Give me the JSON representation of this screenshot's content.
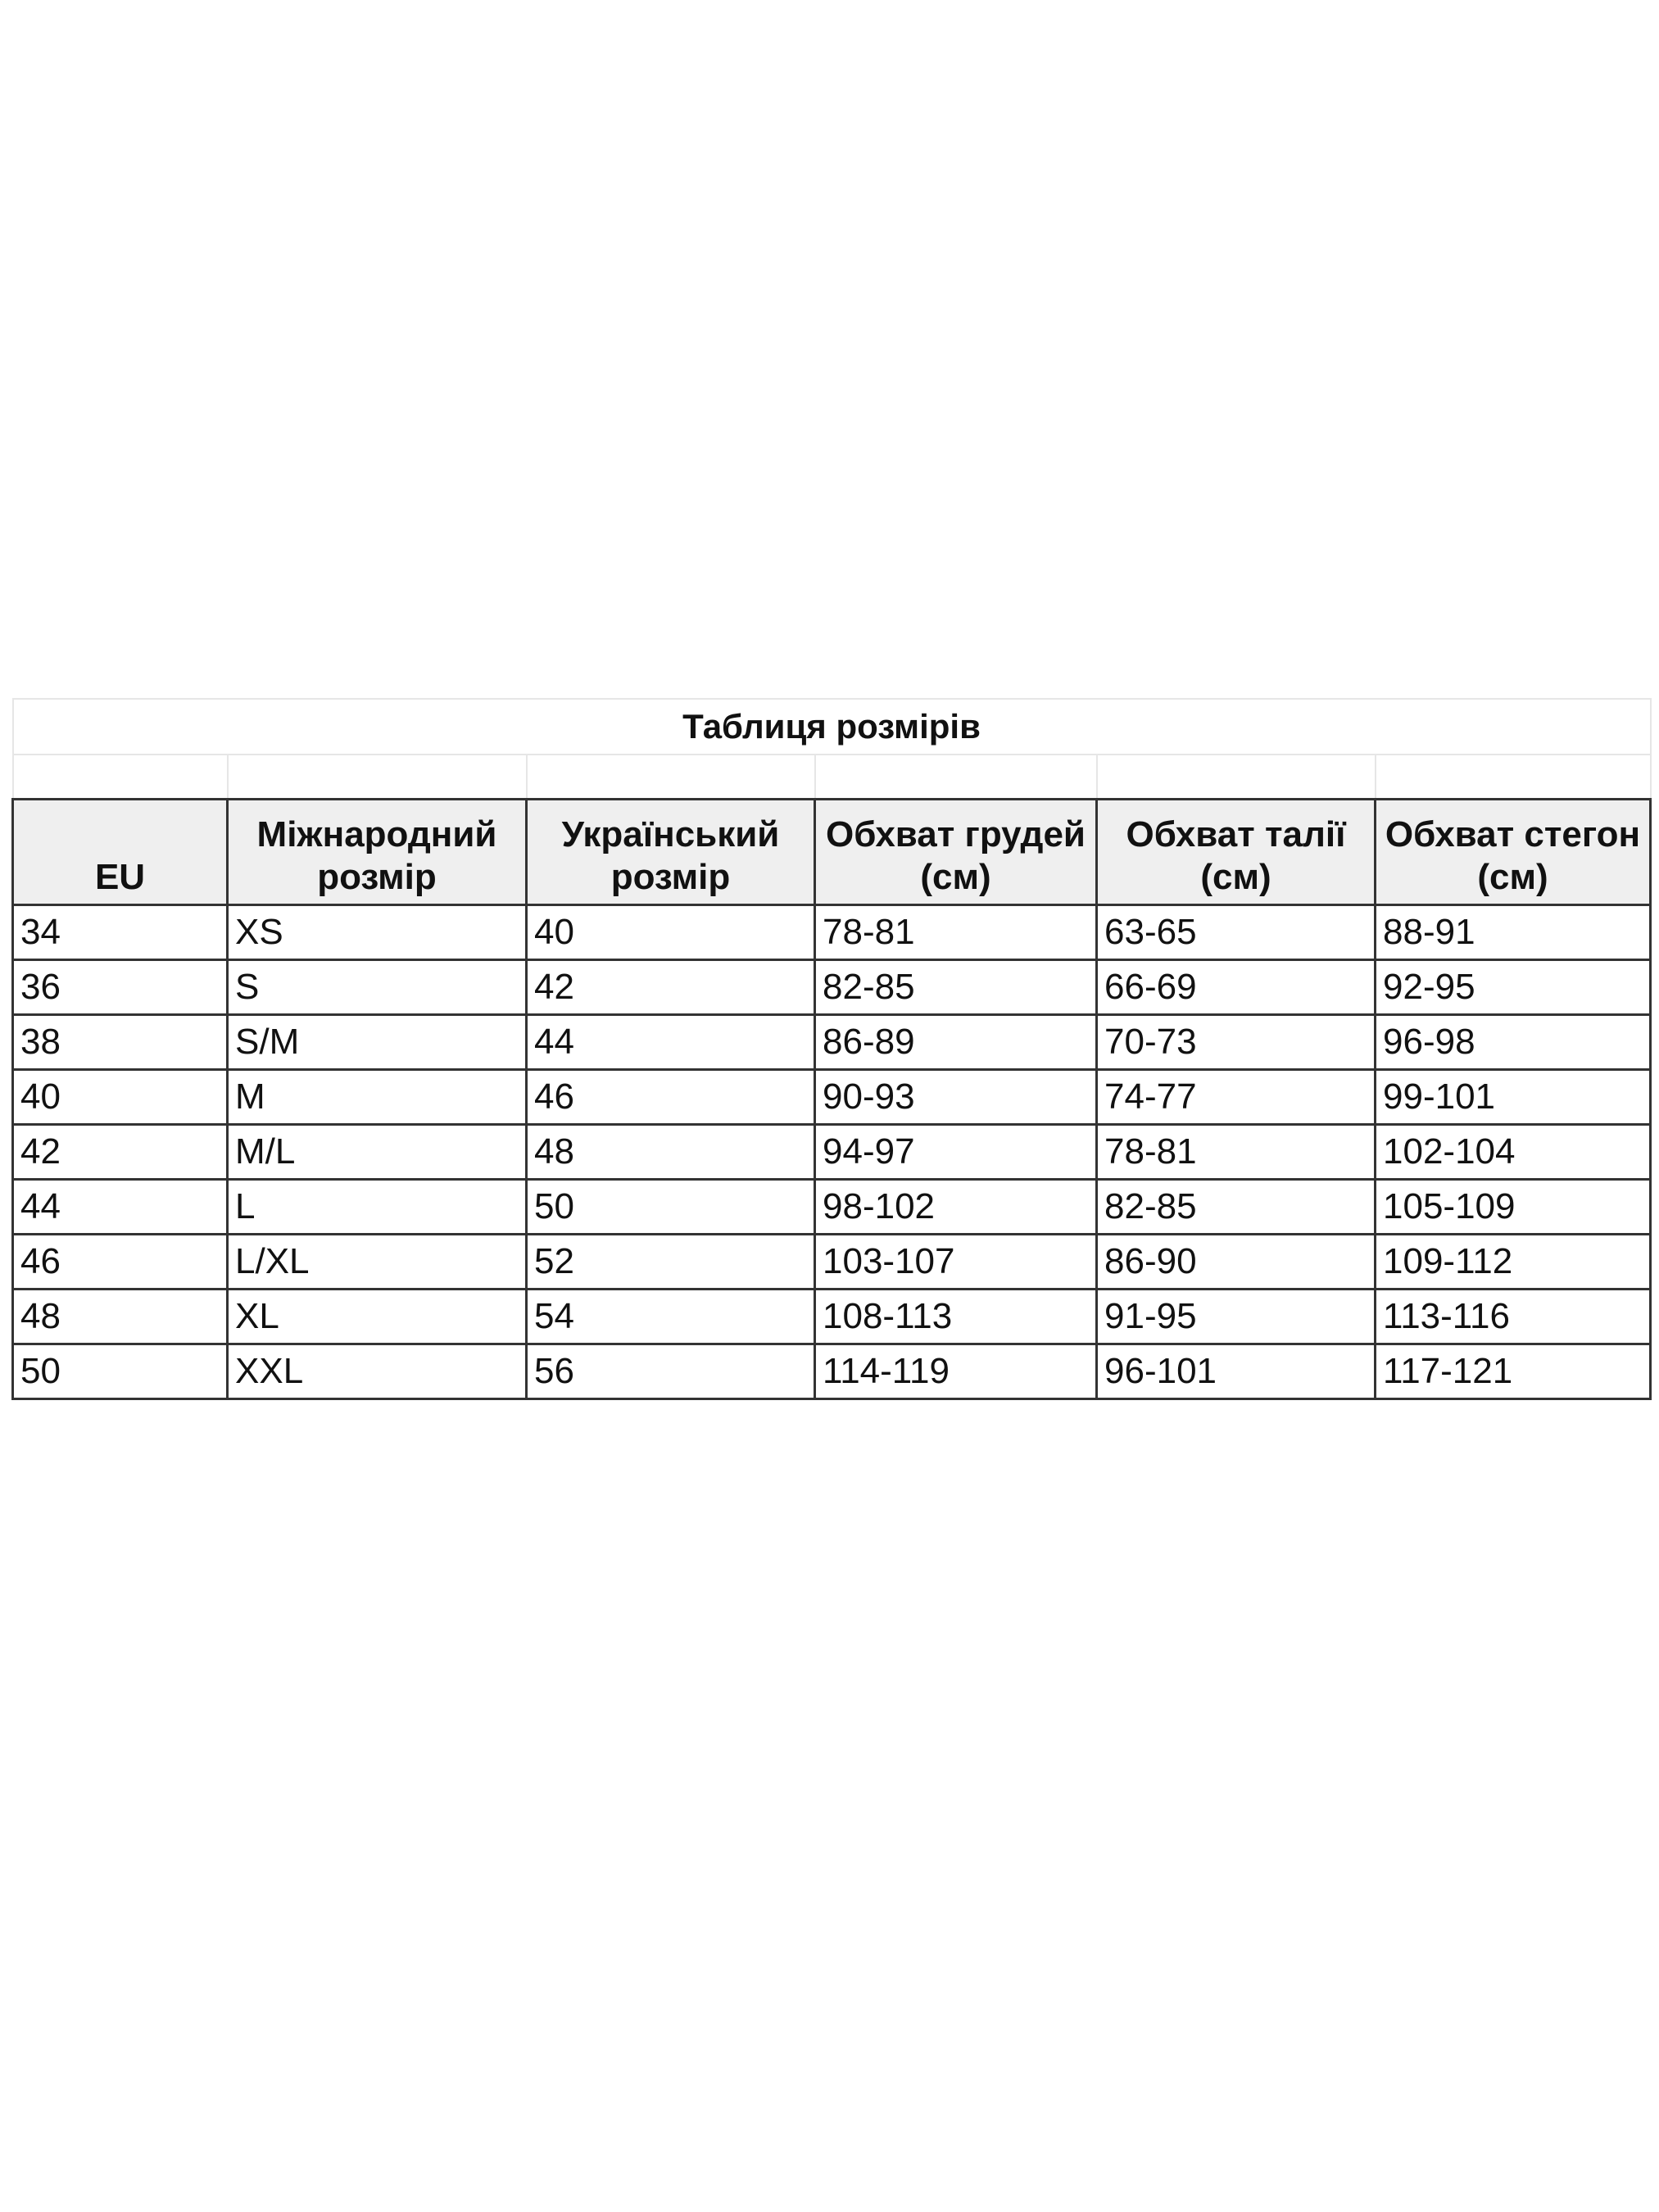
{
  "title": "Таблиця розмірів",
  "header": [
    "EU",
    "Міжнародний розмір",
    "Український розмір",
    "Обхват грудей (см)",
    "Обхват талії (см)",
    "Обхват стегон (см)"
  ],
  "rows": [
    [
      "34",
      "XS",
      "40",
      "78-81",
      "63-65",
      "88-91"
    ],
    [
      "36",
      "S",
      "42",
      "82-85",
      "66-69",
      "92-95"
    ],
    [
      "38",
      "S/M",
      "44",
      "86-89",
      "70-73",
      "96-98"
    ],
    [
      "40",
      "M",
      "46",
      "90-93",
      "74-77",
      "99-101"
    ],
    [
      "42",
      "M/L",
      "48",
      "94-97",
      "78-81",
      "102-104"
    ],
    [
      "44",
      "L",
      "50",
      "98-102",
      "82-85",
      "105-109"
    ],
    [
      "46",
      "L/XL",
      "52",
      "103-107",
      "86-90",
      "109-112"
    ],
    [
      "48",
      "XL",
      "54",
      "108-113",
      "91-95",
      "113-116"
    ],
    [
      "50",
      "XXL",
      "56",
      "114-119",
      "96-101",
      "117-121"
    ]
  ],
  "colors": {
    "header_bg": "#efefef",
    "border": "#333333"
  }
}
